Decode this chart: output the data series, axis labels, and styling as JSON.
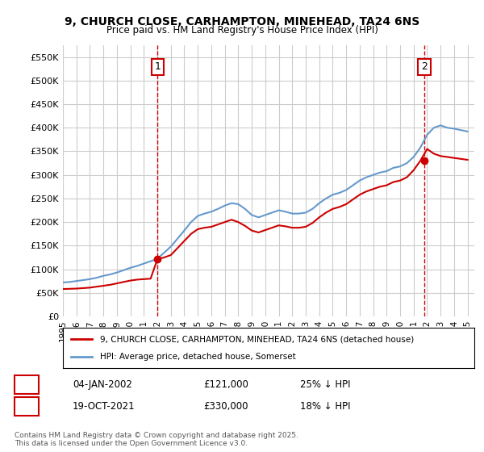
{
  "title": "9, CHURCH CLOSE, CARHAMPTON, MINEHEAD, TA24 6NS",
  "subtitle": "Price paid vs. HM Land Registry's House Price Index (HPI)",
  "xlabel": "",
  "ylabel": "",
  "ylim": [
    0,
    575000
  ],
  "yticks": [
    0,
    50000,
    100000,
    150000,
    200000,
    250000,
    300000,
    350000,
    400000,
    450000,
    500000,
    550000
  ],
  "legend_line1": "9, CHURCH CLOSE, CARHAMPTON, MINEHEAD, TA24 6NS (detached house)",
  "legend_line2": "HPI: Average price, detached house, Somerset",
  "annotation1_label": "1",
  "annotation1_date": "04-JAN-2002",
  "annotation1_price": "£121,000",
  "annotation1_hpi": "25% ↓ HPI",
  "annotation2_label": "2",
  "annotation2_date": "19-OCT-2021",
  "annotation2_price": "£330,000",
  "annotation2_hpi": "18% ↓ HPI",
  "footnote": "Contains HM Land Registry data © Crown copyright and database right 2025.\nThis data is licensed under the Open Government Licence v3.0.",
  "red_color": "#cc0000",
  "blue_color": "#6699cc",
  "vline_color": "#cc0000",
  "background_color": "#ffffff",
  "grid_color": "#cccccc",
  "sale1_x": 2002.01,
  "sale1_y": 121000,
  "sale2_x": 2021.8,
  "sale2_y": 330000,
  "hpi_years": [
    1995.0,
    1995.5,
    1996.0,
    1996.5,
    1997.0,
    1997.5,
    1998.0,
    1998.5,
    1999.0,
    1999.5,
    2000.0,
    2000.5,
    2001.0,
    2001.5,
    2002.0,
    2002.5,
    2003.0,
    2003.5,
    2004.0,
    2004.5,
    2005.0,
    2005.5,
    2006.0,
    2006.5,
    2007.0,
    2007.5,
    2008.0,
    2008.5,
    2009.0,
    2009.5,
    2010.0,
    2010.5,
    2011.0,
    2011.5,
    2012.0,
    2012.5,
    2013.0,
    2013.5,
    2014.0,
    2014.5,
    2015.0,
    2015.5,
    2016.0,
    2016.5,
    2017.0,
    2017.5,
    2018.0,
    2018.5,
    2019.0,
    2019.5,
    2020.0,
    2020.5,
    2021.0,
    2021.5,
    2022.0,
    2022.5,
    2023.0,
    2023.5,
    2024.0,
    2024.5,
    2025.0
  ],
  "hpi_values": [
    72000,
    73000,
    75000,
    77000,
    79000,
    82000,
    86000,
    89000,
    93000,
    98000,
    103000,
    107000,
    112000,
    117000,
    122000,
    135000,
    148000,
    165000,
    182000,
    200000,
    213000,
    218000,
    222000,
    228000,
    235000,
    240000,
    238000,
    228000,
    215000,
    210000,
    215000,
    220000,
    225000,
    222000,
    218000,
    218000,
    220000,
    228000,
    240000,
    250000,
    258000,
    262000,
    268000,
    278000,
    288000,
    295000,
    300000,
    305000,
    308000,
    315000,
    318000,
    325000,
    338000,
    358000,
    385000,
    400000,
    405000,
    400000,
    398000,
    395000,
    392000
  ],
  "price_years": [
    1995.0,
    1995.5,
    1996.0,
    1996.5,
    1997.0,
    1997.5,
    1998.0,
    1998.5,
    1999.0,
    1999.5,
    2000.0,
    2000.5,
    2001.0,
    2001.5,
    2002.0,
    2002.5,
    2003.0,
    2003.5,
    2004.0,
    2004.5,
    2005.0,
    2005.5,
    2006.0,
    2006.5,
    2007.0,
    2007.5,
    2008.0,
    2008.5,
    2009.0,
    2009.5,
    2010.0,
    2010.5,
    2011.0,
    2011.5,
    2012.0,
    2012.5,
    2013.0,
    2013.5,
    2014.0,
    2014.5,
    2015.0,
    2015.5,
    2016.0,
    2016.5,
    2017.0,
    2017.5,
    2018.0,
    2018.5,
    2019.0,
    2019.5,
    2020.0,
    2020.5,
    2021.0,
    2021.5,
    2022.0,
    2022.5,
    2023.0,
    2023.5,
    2024.0,
    2024.5,
    2025.0
  ],
  "price_values": [
    58000,
    58500,
    59000,
    60000,
    61000,
    63000,
    65000,
    67000,
    70000,
    73000,
    76000,
    78000,
    79000,
    80000,
    121000,
    125000,
    130000,
    145000,
    160000,
    175000,
    185000,
    188000,
    190000,
    195000,
    200000,
    205000,
    200000,
    192000,
    182000,
    178000,
    183000,
    188000,
    193000,
    191000,
    188000,
    188000,
    190000,
    198000,
    210000,
    220000,
    228000,
    232000,
    238000,
    248000,
    258000,
    265000,
    270000,
    275000,
    278000,
    285000,
    288000,
    295000,
    310000,
    330000,
    355000,
    345000,
    340000,
    338000,
    336000,
    334000,
    332000
  ],
  "xlim_min": 1995,
  "xlim_max": 2025.5,
  "xtick_years": [
    1995,
    1996,
    1997,
    1998,
    1999,
    2000,
    2001,
    2002,
    2003,
    2004,
    2005,
    2006,
    2007,
    2008,
    2009,
    2010,
    2011,
    2012,
    2013,
    2014,
    2015,
    2016,
    2017,
    2018,
    2019,
    2020,
    2021,
    2022,
    2023,
    2024,
    2025
  ]
}
